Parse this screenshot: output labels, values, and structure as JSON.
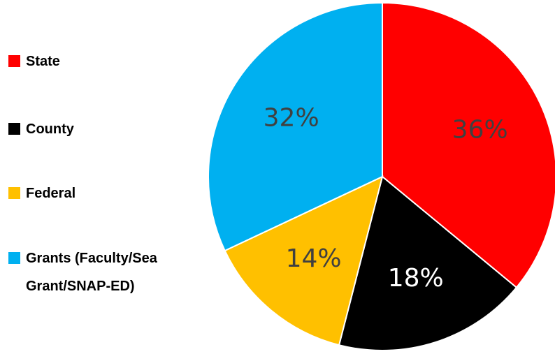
{
  "chart_data": {
    "type": "pie",
    "categories": [
      "State",
      "County",
      "Federal",
      "Grants (Faculty/Sea Grant/SNAP-ED)"
    ],
    "values": [
      36,
      18,
      14,
      32
    ],
    "value_labels": [
      "36%",
      "18%",
      "14%",
      "32%"
    ],
    "colors": [
      "#ff0000",
      "#000000",
      "#ffc000",
      "#00b0f0"
    ],
    "label_colors": [
      "#404040",
      "#ffffff",
      "#404040",
      "#404040"
    ],
    "legend": "left"
  }
}
